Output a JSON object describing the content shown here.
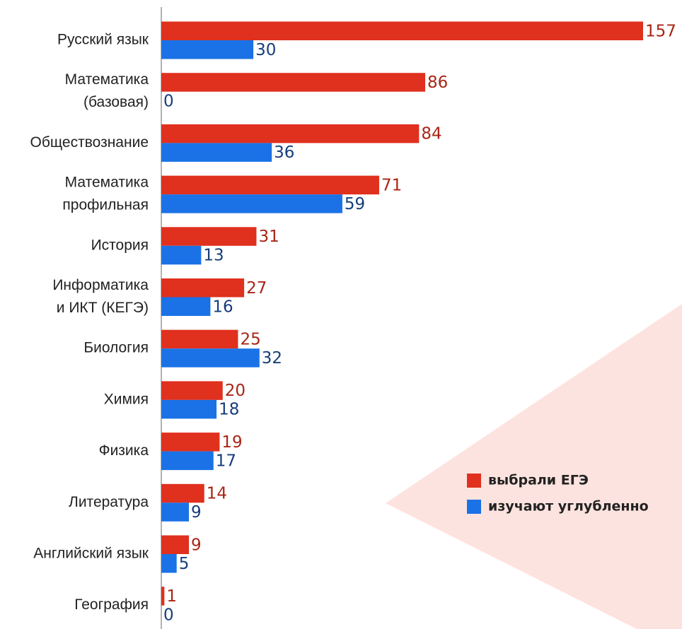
{
  "chart_data": {
    "type": "bar",
    "orientation": "horizontal",
    "categories": [
      [
        "Русский язык"
      ],
      [
        "Математика",
        "(базовая)"
      ],
      [
        "Обществознание"
      ],
      [
        "Математика",
        "профильная"
      ],
      [
        "История"
      ],
      [
        "Информатика",
        "и ИКТ (КЕГЭ)"
      ],
      [
        "Биология"
      ],
      [
        "Химия"
      ],
      [
        "Физика"
      ],
      [
        "Литература"
      ],
      [
        "Английский язык"
      ],
      [
        "География"
      ]
    ],
    "series": [
      {
        "name": "выбрали ЕГЭ",
        "color": "#e0301e",
        "label_color": "#a82616",
        "values": [
          157,
          86,
          84,
          71,
          31,
          27,
          25,
          20,
          19,
          14,
          9,
          1
        ]
      },
      {
        "name": "изучают углубленно",
        "color": "#1a72e6",
        "label_color": "#173e7a",
        "values": [
          30,
          0,
          36,
          59,
          13,
          16,
          32,
          18,
          17,
          9,
          5,
          0
        ]
      }
    ],
    "xlim": [
      0,
      160
    ],
    "legend": "lower right"
  }
}
